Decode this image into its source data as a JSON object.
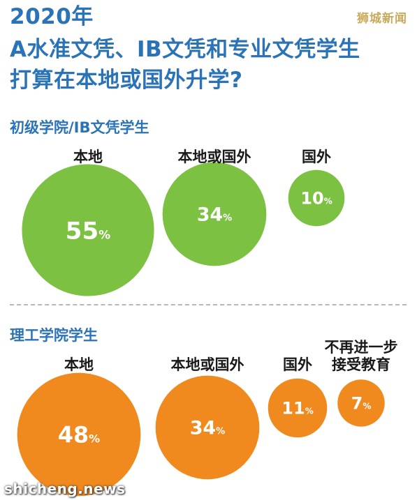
{
  "title": {
    "year": "2020年",
    "line2": "A水准文凭、IB文凭和专业文凭学生",
    "line3": "打算在本地或国外升学?"
  },
  "watermark_top": "狮城新闻",
  "watermark_bottom": "shicheng.news",
  "colors": {
    "blue": "#2b73b7",
    "green": "#7dc143",
    "orange": "#f08a1e"
  },
  "chart_data": [
    {
      "type": "bubble",
      "title": "初级学院/IB文凭学生",
      "categories": [
        "本地",
        "本地或国外",
        "国外"
      ],
      "values": [
        55,
        34,
        10
      ],
      "unit": "%"
    },
    {
      "type": "bubble",
      "title": "理工学院学生",
      "categories": [
        "本地",
        "本地或国外",
        "国外",
        "不再进一步\n接受教育"
      ],
      "values": [
        48,
        34,
        11,
        7
      ],
      "unit": "%"
    }
  ]
}
